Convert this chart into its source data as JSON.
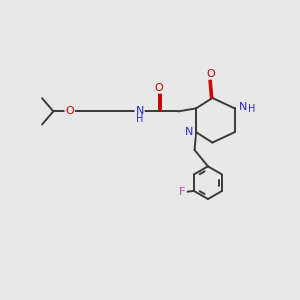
{
  "bg_color": "#e8e8e8",
  "bond_color": "#3a3a3a",
  "N_color": "#2828cc",
  "O_color": "#cc0000",
  "F_color": "#bb44bb",
  "line_width": 1.4,
  "font_size": 8.0,
  "fig_size": [
    3.0,
    3.0
  ],
  "dpi": 100,
  "xlim": [
    0,
    10
  ],
  "ylim": [
    0,
    10
  ]
}
